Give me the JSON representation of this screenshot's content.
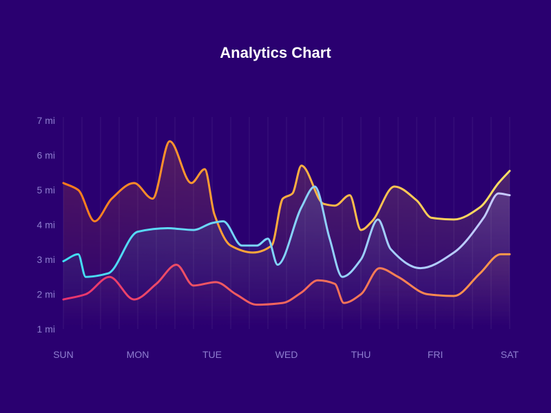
{
  "chart_data": {
    "type": "line",
    "title": "Analytics Chart",
    "xlabel": "",
    "ylabel": "",
    "x_domain": [
      0,
      6
    ],
    "ylim": [
      1,
      7
    ],
    "categories": [
      "SUN",
      "MON",
      "TUE",
      "WED",
      "THU",
      "FRI",
      "SAT"
    ],
    "yticks": [
      {
        "value": 1,
        "label": "1 mi"
      },
      {
        "value": 2,
        "label": "2 mi"
      },
      {
        "value": 3,
        "label": "3 mi"
      },
      {
        "value": 4,
        "label": "4 mi"
      },
      {
        "value": 5,
        "label": "5 mi"
      },
      {
        "value": 6,
        "label": "6 mi"
      },
      {
        "value": 7,
        "label": "7 mi"
      }
    ],
    "grid": true,
    "legend": "none",
    "series": [
      {
        "name": "orange-yellow",
        "color_start": "#ff7a1a",
        "color_end": "#ffe066",
        "points": [
          [
            0,
            5.2
          ],
          [
            0.2,
            5.0
          ],
          [
            0.42,
            4.1
          ],
          [
            0.65,
            4.75
          ],
          [
            0.95,
            5.2
          ],
          [
            1.2,
            4.75
          ],
          [
            1.43,
            6.4
          ],
          [
            1.72,
            5.2
          ],
          [
            1.9,
            5.6
          ],
          [
            2.03,
            4.3
          ],
          [
            2.25,
            3.4
          ],
          [
            2.55,
            3.2
          ],
          [
            2.8,
            3.4
          ],
          [
            2.95,
            4.75
          ],
          [
            3.08,
            4.9
          ],
          [
            3.2,
            5.7
          ],
          [
            3.5,
            4.6
          ],
          [
            3.65,
            4.55
          ],
          [
            3.85,
            4.85
          ],
          [
            4.0,
            3.85
          ],
          [
            4.15,
            4.1
          ],
          [
            4.45,
            5.1
          ],
          [
            4.75,
            4.7
          ],
          [
            4.95,
            4.2
          ],
          [
            5.25,
            4.15
          ],
          [
            5.6,
            4.5
          ],
          [
            5.85,
            5.2
          ],
          [
            6.0,
            5.55
          ]
        ]
      },
      {
        "name": "cyan-blue",
        "color_start": "#3fdcf2",
        "color_end": "#c9c9ff",
        "points": [
          [
            0,
            2.95
          ],
          [
            0.2,
            3.15
          ],
          [
            0.3,
            2.5
          ],
          [
            0.6,
            2.6
          ],
          [
            1.0,
            3.8
          ],
          [
            1.4,
            3.9
          ],
          [
            1.75,
            3.85
          ],
          [
            2.0,
            4.05
          ],
          [
            2.15,
            4.1
          ],
          [
            2.4,
            3.4
          ],
          [
            2.6,
            3.4
          ],
          [
            2.75,
            3.6
          ],
          [
            2.88,
            2.85
          ],
          [
            3.2,
            4.5
          ],
          [
            3.38,
            5.1
          ],
          [
            3.58,
            3.6
          ],
          [
            3.75,
            2.5
          ],
          [
            4.0,
            3.0
          ],
          [
            4.23,
            4.15
          ],
          [
            4.4,
            3.3
          ],
          [
            4.8,
            2.75
          ],
          [
            5.25,
            3.2
          ],
          [
            5.65,
            4.2
          ],
          [
            5.85,
            4.9
          ],
          [
            6.0,
            4.85
          ]
        ]
      },
      {
        "name": "pink-orange",
        "color_start": "#e8336f",
        "color_end": "#ff9a4a",
        "points": [
          [
            0,
            1.85
          ],
          [
            0.3,
            2.0
          ],
          [
            0.62,
            2.5
          ],
          [
            0.95,
            1.85
          ],
          [
            1.25,
            2.3
          ],
          [
            1.52,
            2.85
          ],
          [
            1.75,
            2.25
          ],
          [
            2.05,
            2.35
          ],
          [
            2.32,
            2.0
          ],
          [
            2.6,
            1.7
          ],
          [
            2.95,
            1.75
          ],
          [
            3.2,
            2.05
          ],
          [
            3.42,
            2.4
          ],
          [
            3.65,
            2.3
          ],
          [
            3.77,
            1.75
          ],
          [
            4.0,
            2.0
          ],
          [
            4.25,
            2.75
          ],
          [
            4.5,
            2.5
          ],
          [
            4.9,
            2.0
          ],
          [
            5.25,
            1.95
          ],
          [
            5.6,
            2.6
          ],
          [
            5.88,
            3.15
          ],
          [
            6.0,
            3.15
          ]
        ]
      }
    ]
  }
}
